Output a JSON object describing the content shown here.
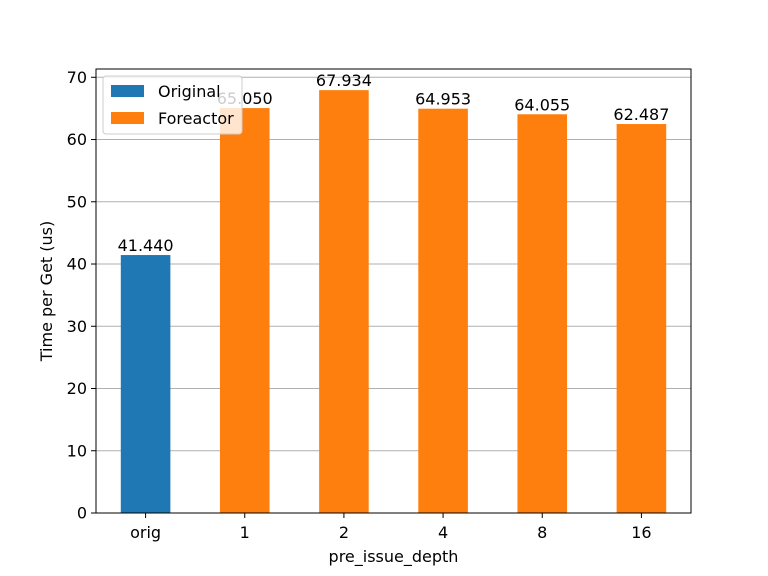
{
  "chart_data": {
    "type": "bar",
    "title": "",
    "xlabel": "pre_issue_depth",
    "ylabel": "Time per Get (us)",
    "categories": [
      "orig",
      "1",
      "2",
      "4",
      "8",
      "16"
    ],
    "values": [
      41.44,
      65.05,
      67.934,
      64.953,
      64.055,
      62.487
    ],
    "value_labels": [
      "41.440",
      "65.050",
      "67.934",
      "64.953",
      "64.055",
      "62.487"
    ],
    "bar_series": [
      "Original",
      "Foreactor",
      "Foreactor",
      "Foreactor",
      "Foreactor",
      "Foreactor"
    ],
    "series": [
      {
        "name": "Original",
        "color": "#1f77b4"
      },
      {
        "name": "Foreactor",
        "color": "#ff7f0e"
      }
    ],
    "ylim": [
      0,
      71.33
    ],
    "yticks": [
      0,
      10,
      20,
      30,
      40,
      50,
      60,
      70
    ],
    "grid": "y",
    "legend": "top-left"
  }
}
